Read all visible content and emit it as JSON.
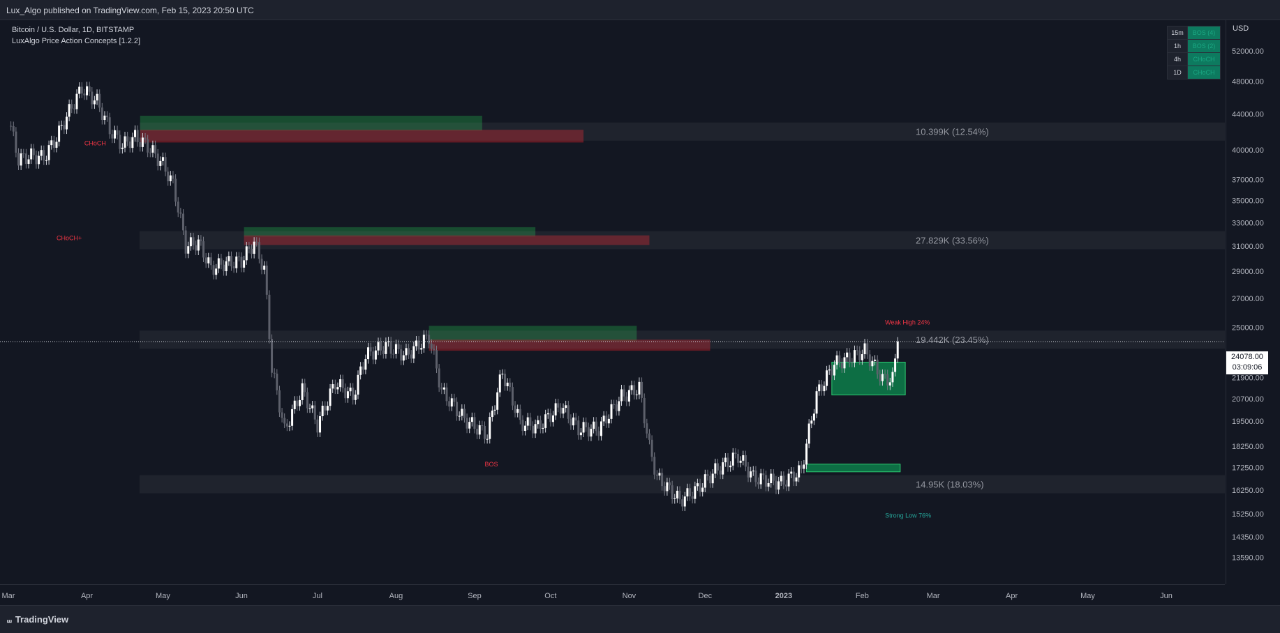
{
  "header": {
    "published_line": "Lux_Algo published on TradingView.com, Feb 15, 2023 20:50 UTC"
  },
  "legend": {
    "symbol": "Bitcoin / U.S. Dollar, 1D, BITSTAMP",
    "indicator": "LuxAlgo Price Action Concepts [1.2.2]"
  },
  "mtf_table": [
    {
      "tf": "15m",
      "status": "BOS (4)"
    },
    {
      "tf": "1h",
      "status": "BOS (2)"
    },
    {
      "tf": "4h",
      "status": "CHoCH"
    },
    {
      "tf": "1D",
      "status": "CHoCH"
    }
  ],
  "price_axis": {
    "currency": "USD",
    "current_price": "24078.00",
    "countdown": "03:09:06"
  },
  "footer": {
    "brand": "TradingView"
  },
  "colors": {
    "bull": "#1b7a4e",
    "bear": "#b22833",
    "teal": "#26a69a",
    "red_text": "#f23645",
    "candle": "#d1d4dc"
  },
  "chart_data": {
    "type": "candlestick",
    "ylabel": "USD",
    "ylim": [
      12800,
      56000
    ],
    "y_scale": "log",
    "y_ticks": [
      52000,
      48000,
      44000,
      40000,
      37000,
      35000,
      33000,
      31000,
      29000,
      27000,
      25000,
      21900,
      20700,
      19500,
      18250,
      17250,
      16250,
      15250,
      14350,
      13590
    ],
    "y_tick_labels": [
      "52000.00",
      "48000.00",
      "44000.00",
      "40000.00",
      "37000.00",
      "35000.00",
      "33000.00",
      "31000.00",
      "29000.00",
      "27000.00",
      "25000.00",
      "21900.00",
      "20700.00",
      "19500.00",
      "18250.00",
      "17250.00",
      "16250.00",
      "15250.00",
      "14350.00",
      "13590.00"
    ],
    "x_ticks": [
      "Mar",
      "Apr",
      "May",
      "Jun",
      "Jul",
      "Aug",
      "Sep",
      "Oct",
      "Nov",
      "Dec",
      "2023",
      "Feb",
      "Mar",
      "Apr",
      "May",
      "Jun"
    ],
    "x_tick_dates": [
      "2022-03-01",
      "2022-04-01",
      "2022-05-01",
      "2022-06-01",
      "2022-07-01",
      "2022-08-01",
      "2022-09-01",
      "2022-10-01",
      "2022-11-01",
      "2022-12-01",
      "2023-01-01",
      "2023-02-01",
      "2023-03-01",
      "2023-04-01",
      "2023-05-01",
      "2023-06-01"
    ],
    "x_range": [
      "2022-03-01",
      "2023-06-20"
    ],
    "current_price": 24078,
    "series_close": [
      [
        "2022-03-01",
        43500
      ],
      [
        "2022-03-05",
        39000
      ],
      [
        "2022-03-10",
        39400
      ],
      [
        "2022-03-15",
        39200
      ],
      [
        "2022-03-20",
        41300
      ],
      [
        "2022-03-25",
        44300
      ],
      [
        "2022-03-30",
        47100
      ],
      [
        "2022-04-05",
        45500
      ],
      [
        "2022-04-10",
        42200
      ],
      [
        "2022-04-15",
        40500
      ],
      [
        "2022-04-20",
        41400
      ],
      [
        "2022-04-25",
        40400
      ],
      [
        "2022-05-01",
        38500
      ],
      [
        "2022-05-05",
        36500
      ],
      [
        "2022-05-10",
        31000
      ],
      [
        "2022-05-15",
        31300
      ],
      [
        "2022-05-20",
        29200
      ],
      [
        "2022-05-25",
        29600
      ],
      [
        "2022-06-01",
        29800
      ],
      [
        "2022-06-06",
        31300
      ],
      [
        "2022-06-10",
        29100
      ],
      [
        "2022-06-13",
        22400
      ],
      [
        "2022-06-18",
        19000
      ],
      [
        "2022-06-25",
        21200
      ],
      [
        "2022-07-01",
        19300
      ],
      [
        "2022-07-08",
        21600
      ],
      [
        "2022-07-15",
        20800
      ],
      [
        "2022-07-20",
        23200
      ],
      [
        "2022-07-28",
        23800
      ],
      [
        "2022-08-05",
        23200
      ],
      [
        "2022-08-14",
        24400
      ],
      [
        "2022-08-19",
        21100
      ],
      [
        "2022-08-28",
        19600
      ],
      [
        "2022-09-06",
        18800
      ],
      [
        "2022-09-12",
        22200
      ],
      [
        "2022-09-19",
        19400
      ],
      [
        "2022-09-26",
        19200
      ],
      [
        "2022-10-05",
        20300
      ],
      [
        "2022-10-12",
        19100
      ],
      [
        "2022-10-20",
        19100
      ],
      [
        "2022-10-29",
        20800
      ],
      [
        "2022-11-05",
        21300
      ],
      [
        "2022-11-09",
        18200
      ],
      [
        "2022-11-12",
        16800
      ],
      [
        "2022-11-21",
        15800
      ],
      [
        "2022-11-28",
        16300
      ],
      [
        "2022-12-05",
        17100
      ],
      [
        "2022-12-14",
        17800
      ],
      [
        "2022-12-20",
        16800
      ],
      [
        "2022-12-31",
        16550
      ],
      [
        "2023-01-08",
        17100
      ],
      [
        "2023-01-14",
        20900
      ],
      [
        "2023-01-21",
        22700
      ],
      [
        "2023-01-28",
        23100
      ],
      [
        "2023-02-02",
        23500
      ],
      [
        "2023-02-09",
        21800
      ],
      [
        "2023-02-13",
        21800
      ],
      [
        "2023-02-15",
        24078
      ]
    ],
    "zones": [
      {
        "type": "bull",
        "from": "2022-04-22",
        "to": "2022-09-04",
        "ylow": 42100,
        "yhigh": 43800
      },
      {
        "type": "bear",
        "from": "2022-04-22",
        "to": "2022-10-14",
        "ylow": 40800,
        "yhigh": 42200
      },
      {
        "type": "bull",
        "from": "2022-06-02",
        "to": "2022-09-25",
        "ylow": 31800,
        "yhigh": 32600
      },
      {
        "type": "bear",
        "from": "2022-06-02",
        "to": "2022-11-09",
        "ylow": 31100,
        "yhigh": 31900
      },
      {
        "type": "bull",
        "from": "2022-08-14",
        "to": "2022-11-04",
        "ylow": 24100,
        "yhigh": 25100
      },
      {
        "type": "bear",
        "from": "2022-08-14",
        "to": "2022-12-03",
        "ylow": 23500,
        "yhigh": 24200
      },
      {
        "type": "bull_box",
        "from": "2023-01-20",
        "to": "2023-02-18",
        "ylow": 20900,
        "yhigh": 22800
      },
      {
        "type": "bull_box",
        "from": "2023-01-10",
        "to": "2023-02-16",
        "ylow": 17050,
        "yhigh": 17400
      }
    ],
    "liquidity_labels": [
      {
        "label": "10.399K (12.54%)",
        "price": 42000
      },
      {
        "label": "27.829K (33.56%)",
        "price": 31500
      },
      {
        "label": "19.442K (23.45%)",
        "price": 24200
      },
      {
        "label": "14.95K (18.03%)",
        "price": 16500
      }
    ],
    "structure_labels": [
      {
        "label": "Weak High 24%",
        "date": "2023-02-10",
        "price": 25200,
        "color": "red"
      },
      {
        "label": "Strong Low 76%",
        "date": "2023-02-10",
        "price": 15100,
        "color": "teal"
      },
      {
        "label": "CHoCH+",
        "date": "2022-03-20",
        "price": 31500,
        "color": "red"
      },
      {
        "label": "BOS",
        "date": "2022-09-05",
        "price": 17300,
        "color": "red"
      },
      {
        "label": "CHoCH",
        "date": "2022-03-31",
        "price": 40500,
        "color": "red"
      }
    ]
  }
}
